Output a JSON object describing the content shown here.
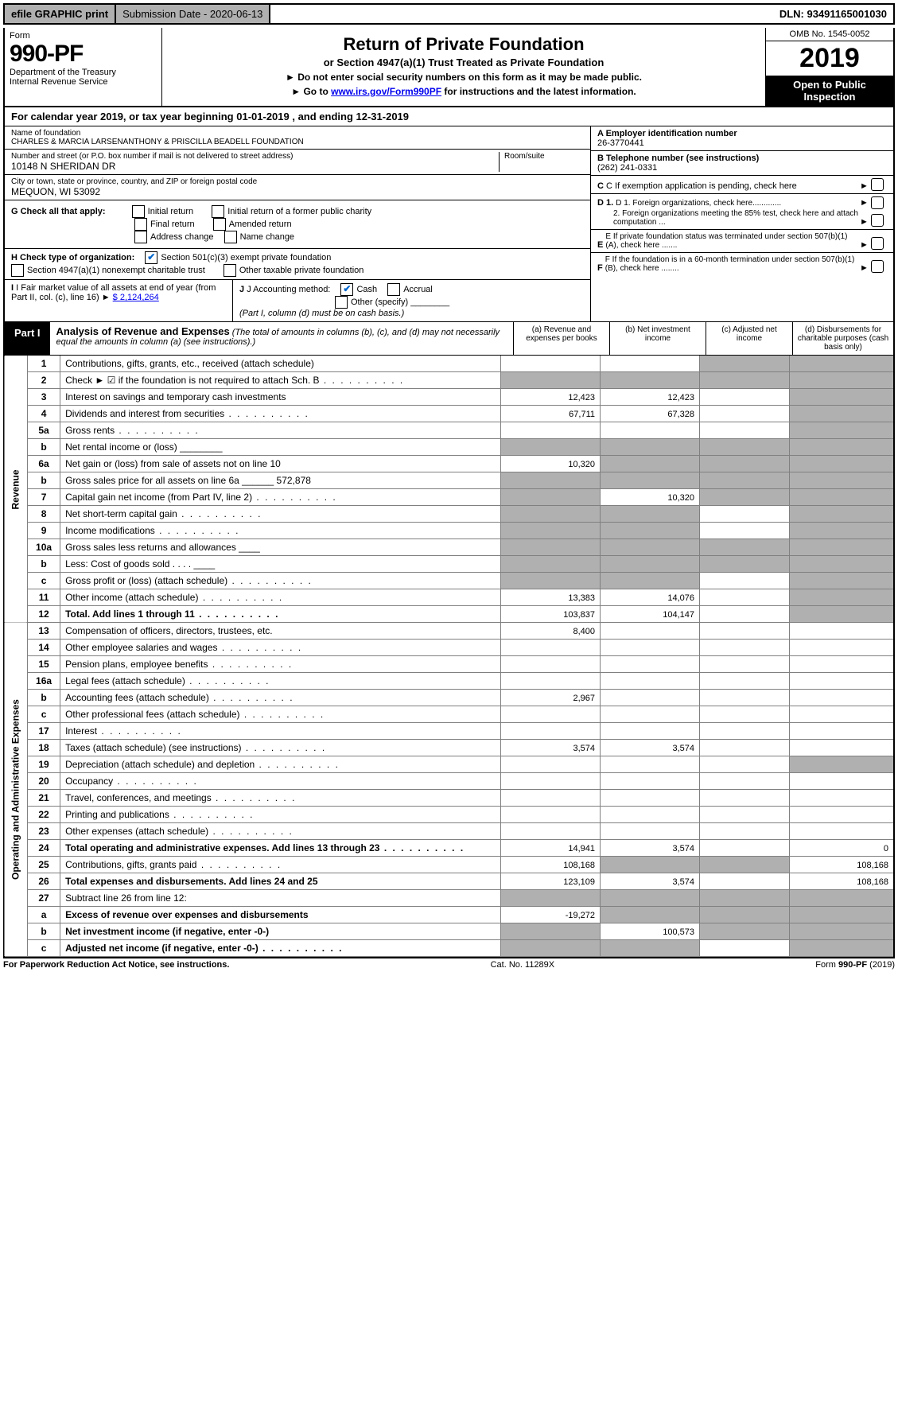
{
  "top": {
    "efile": "efile GRAPHIC print",
    "sub_date_label": "Submission Date - 2020-06-13",
    "dln": "DLN: 93491165001030"
  },
  "header": {
    "form_word": "Form",
    "form_num": "990-PF",
    "dept": "Department of the Treasury",
    "irs": "Internal Revenue Service",
    "title": "Return of Private Foundation",
    "subtitle": "or Section 4947(a)(1) Trust Treated as Private Foundation",
    "bullet1": "► Do not enter social security numbers on this form as it may be made public.",
    "bullet2_pre": "► Go to ",
    "bullet2_link": "www.irs.gov/Form990PF",
    "bullet2_post": " for instructions and the latest information.",
    "omb": "OMB No. 1545-0052",
    "year": "2019",
    "open": "Open to Public Inspection"
  },
  "calendar": {
    "text_pre": "For calendar year 2019, or tax year beginning ",
    "begin": "01-01-2019",
    "mid": " , and ending ",
    "end": "12-31-2019"
  },
  "entity": {
    "name_label": "Name of foundation",
    "name": "CHARLES & MARCIA LARSENANTHONY & PRISCILLA BEADELL FOUNDATION",
    "addr_label": "Number and street (or P.O. box number if mail is not delivered to street address)",
    "room_label": "Room/suite",
    "addr": "10148 N SHERIDAN DR",
    "city_label": "City or town, state or province, country, and ZIP or foreign postal code",
    "city": "MEQUON, WI  53092",
    "a_label": "A Employer identification number",
    "a_val": "26-3770441",
    "b_label": "B Telephone number (see instructions)",
    "b_val": "(262) 241-0331",
    "c_label": "C If exemption application is pending, check here",
    "d1_label": "D 1. Foreign organizations, check here.............",
    "d2_label": "2. Foreign organizations meeting the 85% test, check here and attach computation ...",
    "e_label": "E  If private foundation status was terminated under section 507(b)(1)(A), check here .......",
    "f_label": "F  If the foundation is in a 60-month termination under section 507(b)(1)(B), check here ........"
  },
  "g": {
    "label": "G Check all that apply:",
    "opts": [
      "Initial return",
      "Initial return of a former public charity",
      "Final return",
      "Amended return",
      "Address change",
      "Name change"
    ]
  },
  "h": {
    "label": "H Check type of organization:",
    "o1": "Section 501(c)(3) exempt private foundation",
    "o2": "Section 4947(a)(1) nonexempt charitable trust",
    "o3": "Other taxable private foundation",
    "checked_idx": 0
  },
  "i": {
    "label": "I Fair market value of all assets at end of year (from Part II, col. (c), line 16)",
    "val": "$  2,124,264",
    "arrow": "►"
  },
  "j": {
    "label": "J Accounting method:",
    "cash": "Cash",
    "accrual": "Accrual",
    "other": "Other (specify)",
    "note": "(Part I, column (d) must be on cash basis.)"
  },
  "part1": {
    "tab": "Part I",
    "title": "Analysis of Revenue and Expenses",
    "note": "(The total of amounts in columns (b), (c), and (d) may not necessarily equal the amounts in column (a) (see instructions).)",
    "col_a": "(a)   Revenue and expenses per books",
    "col_b": "(b)  Net investment income",
    "col_c": "(c)  Adjusted net income",
    "col_d": "(d)  Disbursements for charitable purposes (cash basis only)"
  },
  "side": {
    "revenue": "Revenue",
    "expenses": "Operating and Administrative Expenses"
  },
  "lines": [
    {
      "n": "1",
      "t": "Contributions, gifts, grants, etc., received (attach schedule)",
      "a": "",
      "b": "",
      "c": "s",
      "d": "s"
    },
    {
      "n": "2",
      "t": "Check ► ☑ if the foundation is not required to attach Sch. B",
      "a": "s",
      "b": "s",
      "c": "s",
      "d": "s",
      "dots": true
    },
    {
      "n": "3",
      "t": "Interest on savings and temporary cash investments",
      "a": "12,423",
      "b": "12,423",
      "c": "",
      "d": "s"
    },
    {
      "n": "4",
      "t": "Dividends and interest from securities",
      "a": "67,711",
      "b": "67,328",
      "c": "",
      "d": "s",
      "dots": true
    },
    {
      "n": "5a",
      "t": "Gross rents",
      "a": "",
      "b": "",
      "c": "",
      "d": "s",
      "dots": true
    },
    {
      "n": "b",
      "t": "Net rental income or (loss)  ________",
      "a": "s",
      "b": "s",
      "c": "s",
      "d": "s"
    },
    {
      "n": "6a",
      "t": "Net gain or (loss) from sale of assets not on line 10",
      "a": "10,320",
      "b": "s",
      "c": "s",
      "d": "s"
    },
    {
      "n": "b",
      "t": "Gross sales price for all assets on line 6a ______ 572,878",
      "a": "s",
      "b": "s",
      "c": "s",
      "d": "s"
    },
    {
      "n": "7",
      "t": "Capital gain net income (from Part IV, line 2)",
      "a": "s",
      "b": "10,320",
      "c": "s",
      "d": "s",
      "dots": true
    },
    {
      "n": "8",
      "t": "Net short-term capital gain",
      "a": "s",
      "b": "s",
      "c": "",
      "d": "s",
      "dots": true
    },
    {
      "n": "9",
      "t": "Income modifications",
      "a": "s",
      "b": "s",
      "c": "",
      "d": "s",
      "dots": true
    },
    {
      "n": "10a",
      "t": "Gross sales less returns and allowances  ____",
      "a": "s",
      "b": "s",
      "c": "s",
      "d": "s"
    },
    {
      "n": "b",
      "t": "Less: Cost of goods sold     . . . .  ____",
      "a": "s",
      "b": "s",
      "c": "s",
      "d": "s"
    },
    {
      "n": "c",
      "t": "Gross profit or (loss) (attach schedule)",
      "a": "s",
      "b": "s",
      "c": "",
      "d": "s",
      "dots": true
    },
    {
      "n": "11",
      "t": "Other income (attach schedule)",
      "a": "13,383",
      "b": "14,076",
      "c": "",
      "d": "s",
      "dots": true
    },
    {
      "n": "12",
      "t": "Total. Add lines 1 through 11",
      "a": "103,837",
      "b": "104,147",
      "c": "",
      "d": "s",
      "bold": true,
      "dots": true
    }
  ],
  "lines2": [
    {
      "n": "13",
      "t": "Compensation of officers, directors, trustees, etc.",
      "a": "8,400",
      "b": "",
      "c": "",
      "d": ""
    },
    {
      "n": "14",
      "t": "Other employee salaries and wages",
      "a": "",
      "b": "",
      "c": "",
      "d": "",
      "dots": true
    },
    {
      "n": "15",
      "t": "Pension plans, employee benefits",
      "a": "",
      "b": "",
      "c": "",
      "d": "",
      "dots": true
    },
    {
      "n": "16a",
      "t": "Legal fees (attach schedule)",
      "a": "",
      "b": "",
      "c": "",
      "d": "",
      "dots": true
    },
    {
      "n": "b",
      "t": "Accounting fees (attach schedule)",
      "a": "2,967",
      "b": "",
      "c": "",
      "d": "",
      "dots": true
    },
    {
      "n": "c",
      "t": "Other professional fees (attach schedule)",
      "a": "",
      "b": "",
      "c": "",
      "d": "",
      "dots": true
    },
    {
      "n": "17",
      "t": "Interest",
      "a": "",
      "b": "",
      "c": "",
      "d": "",
      "dots": true
    },
    {
      "n": "18",
      "t": "Taxes (attach schedule) (see instructions)",
      "a": "3,574",
      "b": "3,574",
      "c": "",
      "d": "",
      "dots": true
    },
    {
      "n": "19",
      "t": "Depreciation (attach schedule) and depletion",
      "a": "",
      "b": "",
      "c": "",
      "d": "s",
      "dots": true
    },
    {
      "n": "20",
      "t": "Occupancy",
      "a": "",
      "b": "",
      "c": "",
      "d": "",
      "dots": true
    },
    {
      "n": "21",
      "t": "Travel, conferences, and meetings",
      "a": "",
      "b": "",
      "c": "",
      "d": "",
      "dots": true
    },
    {
      "n": "22",
      "t": "Printing and publications",
      "a": "",
      "b": "",
      "c": "",
      "d": "",
      "dots": true
    },
    {
      "n": "23",
      "t": "Other expenses (attach schedule)",
      "a": "",
      "b": "",
      "c": "",
      "d": "",
      "dots": true
    },
    {
      "n": "24",
      "t": "Total operating and administrative expenses. Add lines 13 through 23",
      "a": "14,941",
      "b": "3,574",
      "c": "",
      "d": "0",
      "bold": true,
      "dots": true
    },
    {
      "n": "25",
      "t": "Contributions, gifts, grants paid",
      "a": "108,168",
      "b": "s",
      "c": "s",
      "d": "108,168",
      "dots": true
    },
    {
      "n": "26",
      "t": "Total expenses and disbursements. Add lines 24 and 25",
      "a": "123,109",
      "b": "3,574",
      "c": "",
      "d": "108,168",
      "bold": true
    },
    {
      "n": "27",
      "t": "Subtract line 26 from line 12:",
      "a": "s",
      "b": "s",
      "c": "s",
      "d": "s"
    },
    {
      "n": "a",
      "t": "Excess of revenue over expenses and disbursements",
      "a": "-19,272",
      "b": "s",
      "c": "s",
      "d": "s",
      "bold": true
    },
    {
      "n": "b",
      "t": "Net investment income (if negative, enter -0-)",
      "a": "s",
      "b": "100,573",
      "c": "s",
      "d": "s",
      "bold": true
    },
    {
      "n": "c",
      "t": "Adjusted net income (if negative, enter -0-)",
      "a": "s",
      "b": "s",
      "c": "",
      "d": "s",
      "bold": true,
      "dots": true
    }
  ],
  "footer": {
    "left": "For Paperwork Reduction Act Notice, see instructions.",
    "mid": "Cat. No. 11289X",
    "right": "Form 990-PF (2019)"
  },
  "colors": {
    "shaded": "#b0b0b0",
    "check": "#0066cc",
    "link": "#0000ee"
  },
  "col_widths": {
    "a": 112,
    "b": 112,
    "c": 100,
    "d": 118
  }
}
